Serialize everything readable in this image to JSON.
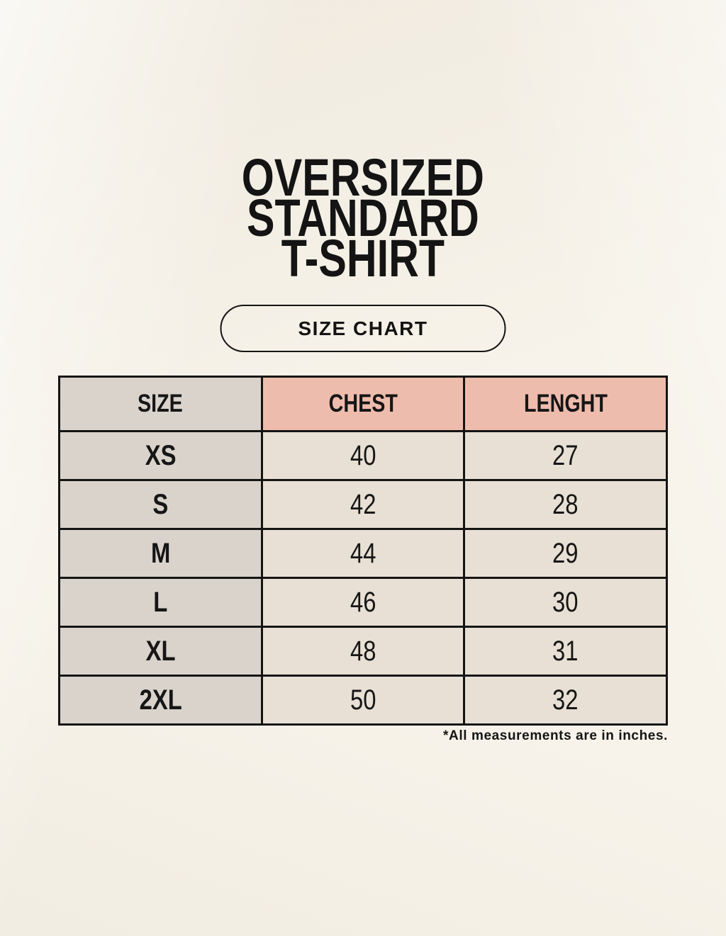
{
  "header": {
    "title_lines": [
      "OVERSIZED",
      "STANDARD",
      "T-SHIRT"
    ],
    "button_label": "SIZE CHART"
  },
  "footnote": "*All measurements are in inches.",
  "colors": {
    "page_background": "#f7f3ea",
    "size_column_bg": "#dad3cc",
    "measure_header_bg": "#eebcad",
    "value_cell_bg": "#e8e0d4",
    "table_border": "#141414",
    "text": "#161616"
  },
  "chart_data": {
    "type": "table",
    "title": "OVERSIZED STANDARD T-SHIRT",
    "subtitle": "SIZE CHART",
    "columns": [
      "SIZE",
      "CHEST",
      "LENGHT"
    ],
    "rows": [
      [
        "XS",
        "40",
        "27"
      ],
      [
        "S",
        "42",
        "28"
      ],
      [
        "M",
        "44",
        "29"
      ],
      [
        "L",
        "46",
        "30"
      ],
      [
        "XL",
        "48",
        "31"
      ],
      [
        "2XL",
        "50",
        "32"
      ]
    ],
    "note": "*All measurements are in inches.",
    "units": "inches"
  }
}
